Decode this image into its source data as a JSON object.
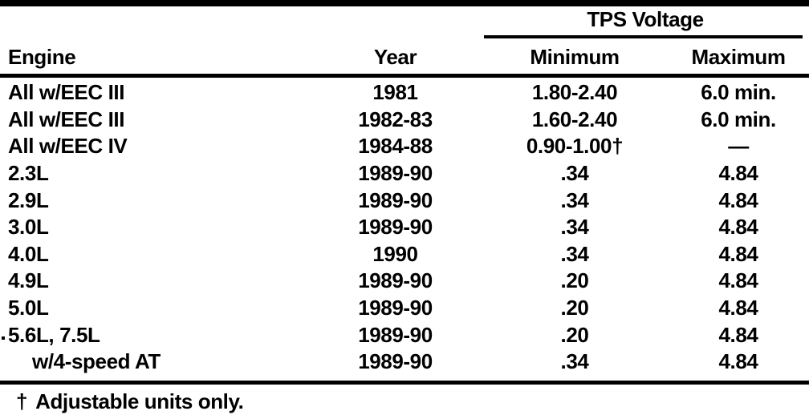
{
  "page": {
    "background": "#ffffff",
    "ink": "#000000"
  },
  "table": {
    "group_header": "TPS Voltage",
    "columns": {
      "engine": "Engine",
      "year": "Year",
      "minimum": "Minimum",
      "maximum": "Maximum"
    },
    "rows": [
      {
        "engine": "All w/EEC III",
        "year": "1981",
        "minimum": "1.80-2.40",
        "maximum": "6.0 min.",
        "indent": false
      },
      {
        "engine": "All w/EEC III",
        "year": "1982-83",
        "minimum": "1.60-2.40",
        "maximum": "6.0 min.",
        "indent": false
      },
      {
        "engine": "All w/EEC IV",
        "year": "1984-88",
        "minimum": "0.90-1.00†",
        "maximum": "—",
        "indent": false
      },
      {
        "engine": "2.3L",
        "year": "1989-90",
        "minimum": ".34",
        "maximum": "4.84",
        "indent": false
      },
      {
        "engine": "2.9L",
        "year": "1989-90",
        "minimum": ".34",
        "maximum": "4.84",
        "indent": false
      },
      {
        "engine": "3.0L",
        "year": "1989-90",
        "minimum": ".34",
        "maximum": "4.84",
        "indent": false
      },
      {
        "engine": "4.0L",
        "year": "1990",
        "minimum": ".34",
        "maximum": "4.84",
        "indent": false
      },
      {
        "engine": "4.9L",
        "year": "1989-90",
        "minimum": ".20",
        "maximum": "4.84",
        "indent": false
      },
      {
        "engine": "5.0L",
        "year": "1989-90",
        "minimum": ".20",
        "maximum": "4.84",
        "indent": false
      },
      {
        "engine": "5.6L, 7.5L",
        "year": "1989-90",
        "minimum": ".20",
        "maximum": "4.84",
        "indent": false
      },
      {
        "engine": "w/4-speed AT",
        "year": "1989-90",
        "minimum": ".34",
        "maximum": "4.84",
        "indent": true
      }
    ],
    "footnote": {
      "marker": "†",
      "text": "Adjustable units only."
    }
  }
}
